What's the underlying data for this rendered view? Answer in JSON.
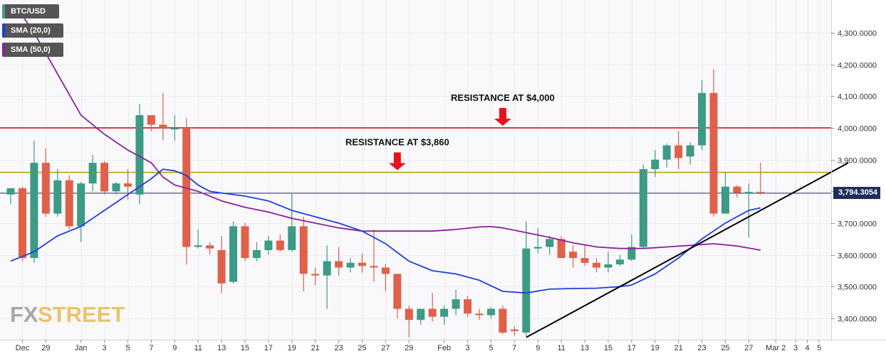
{
  "legend": [
    {
      "label": "BTC/USD",
      "color": "#4a9a8a"
    },
    {
      "label": "SMA (20,0)",
      "color": "#1f3fe0"
    },
    {
      "label": "SMA (50,0)",
      "color": "#8e1fa0"
    }
  ],
  "watermark": {
    "fx": "FX",
    "street": "STREET"
  },
  "last_price_label": "3,794.3054",
  "annotations": [
    {
      "text": "RESISTANCE AT $4,000",
      "level": 4000,
      "at_index": 42
    },
    {
      "text": "RESISTANCE AT $3,860",
      "level": 3860,
      "at_index": 33
    }
  ],
  "colors": {
    "up": "#3d9a85",
    "down": "#e0604a",
    "sma20": "#1f3fe0",
    "sma50": "#8e1fa0",
    "res4000": "#e01010",
    "res3860": "#b9a10a",
    "trend": "#000000",
    "price_line": "#1f2d5a"
  },
  "chart_data": {
    "type": "candlestick",
    "ylim": [
      3330,
      4400
    ],
    "y_ticks": [
      3400,
      3500,
      3600,
      3700,
      3800,
      3900,
      4000,
      4100,
      4200,
      4300
    ],
    "y_tick_labels": [
      "3,400.0000",
      "3,500.0000",
      "3,600.0000",
      "3,700.0000",
      "3,800.0000",
      "3,900.0000",
      "4,000.0000",
      "4,100.0000",
      "4,200.0000",
      "4,300.0000"
    ],
    "x_labels": [
      {
        "i": 1,
        "label": "Dec"
      },
      {
        "i": 3,
        "label": "29"
      },
      {
        "i": 6,
        "label": "Jan"
      },
      {
        "i": 8,
        "label": "3"
      },
      {
        "i": 10,
        "label": "5"
      },
      {
        "i": 12,
        "label": "7"
      },
      {
        "i": 14,
        "label": "9"
      },
      {
        "i": 16,
        "label": "11"
      },
      {
        "i": 18,
        "label": "13"
      },
      {
        "i": 20,
        "label": "15"
      },
      {
        "i": 22,
        "label": "17"
      },
      {
        "i": 24,
        "label": "19"
      },
      {
        "i": 26,
        "label": "21"
      },
      {
        "i": 28,
        "label": "23"
      },
      {
        "i": 30,
        "label": "25"
      },
      {
        "i": 32,
        "label": "27"
      },
      {
        "i": 34,
        "label": "29"
      },
      {
        "i": 37,
        "label": "Feb"
      },
      {
        "i": 39,
        "label": "3"
      },
      {
        "i": 41,
        "label": "5"
      },
      {
        "i": 43,
        "label": "7"
      },
      {
        "i": 45,
        "label": "9"
      },
      {
        "i": 47,
        "label": "11"
      },
      {
        "i": 49,
        "label": "13"
      },
      {
        "i": 51,
        "label": "15"
      },
      {
        "i": 53,
        "label": "17"
      },
      {
        "i": 55,
        "label": "19"
      },
      {
        "i": 57,
        "label": "21"
      },
      {
        "i": 59,
        "label": "23"
      },
      {
        "i": 61,
        "label": "25"
      },
      {
        "i": 63,
        "label": "27"
      },
      {
        "i": 65.3,
        "label": "Mar 2"
      },
      {
        "i": 67,
        "label": "3"
      },
      {
        "i": 68,
        "label": "4"
      },
      {
        "i": 69,
        "label": "5"
      }
    ],
    "candles": [
      {
        "o": 3790,
        "h": 3810,
        "l": 3760,
        "c": 3810
      },
      {
        "o": 3810,
        "h": 3815,
        "l": 3580,
        "c": 3590
      },
      {
        "o": 3590,
        "h": 3960,
        "l": 3575,
        "c": 3890
      },
      {
        "o": 3890,
        "h": 3935,
        "l": 3720,
        "c": 3730
      },
      {
        "o": 3730,
        "h": 3870,
        "l": 3720,
        "c": 3835
      },
      {
        "o": 3835,
        "h": 3850,
        "l": 3680,
        "c": 3690
      },
      {
        "o": 3690,
        "h": 3830,
        "l": 3640,
        "c": 3825
      },
      {
        "o": 3825,
        "h": 3915,
        "l": 3800,
        "c": 3890
      },
      {
        "o": 3890,
        "h": 3895,
        "l": 3790,
        "c": 3800
      },
      {
        "o": 3800,
        "h": 3830,
        "l": 3790,
        "c": 3825
      },
      {
        "o": 3825,
        "h": 3870,
        "l": 3775,
        "c": 3815
      },
      {
        "o": 3790,
        "h": 4075,
        "l": 3760,
        "c": 4040
      },
      {
        "o": 4040,
        "h": 4040,
        "l": 3990,
        "c": 4010
      },
      {
        "o": 4010,
        "h": 4110,
        "l": 3960,
        "c": 4000
      },
      {
        "o": 3995,
        "h": 4040,
        "l": 3960,
        "c": 4000
      },
      {
        "o": 4000,
        "h": 4030,
        "l": 3570,
        "c": 3625
      },
      {
        "o": 3625,
        "h": 3680,
        "l": 3620,
        "c": 3630
      },
      {
        "o": 3630,
        "h": 3640,
        "l": 3600,
        "c": 3620
      },
      {
        "o": 3615,
        "h": 3660,
        "l": 3480,
        "c": 3510
      },
      {
        "o": 3515,
        "h": 3705,
        "l": 3510,
        "c": 3690
      },
      {
        "o": 3690,
        "h": 3700,
        "l": 3580,
        "c": 3590
      },
      {
        "o": 3590,
        "h": 3640,
        "l": 3580,
        "c": 3615
      },
      {
        "o": 3615,
        "h": 3660,
        "l": 3600,
        "c": 3645
      },
      {
        "o": 3645,
        "h": 3665,
        "l": 3610,
        "c": 3615
      },
      {
        "o": 3615,
        "h": 3795,
        "l": 3610,
        "c": 3690
      },
      {
        "o": 3690,
        "h": 3720,
        "l": 3485,
        "c": 3540
      },
      {
        "o": 3540,
        "h": 3560,
        "l": 3505,
        "c": 3535
      },
      {
        "o": 3535,
        "h": 3630,
        "l": 3430,
        "c": 3580
      },
      {
        "o": 3580,
        "h": 3625,
        "l": 3535,
        "c": 3560
      },
      {
        "o": 3560,
        "h": 3590,
        "l": 3545,
        "c": 3575
      },
      {
        "o": 3575,
        "h": 3605,
        "l": 3545,
        "c": 3565
      },
      {
        "o": 3565,
        "h": 3680,
        "l": 3515,
        "c": 3560
      },
      {
        "o": 3560,
        "h": 3570,
        "l": 3485,
        "c": 3540
      },
      {
        "o": 3540,
        "h": 3540,
        "l": 3400,
        "c": 3430
      },
      {
        "o": 3430,
        "h": 3440,
        "l": 3340,
        "c": 3395
      },
      {
        "o": 3395,
        "h": 3430,
        "l": 3380,
        "c": 3430
      },
      {
        "o": 3430,
        "h": 3480,
        "l": 3390,
        "c": 3405
      },
      {
        "o": 3405,
        "h": 3440,
        "l": 3380,
        "c": 3430
      },
      {
        "o": 3430,
        "h": 3490,
        "l": 3410,
        "c": 3460
      },
      {
        "o": 3460,
        "h": 3470,
        "l": 3405,
        "c": 3415
      },
      {
        "o": 3415,
        "h": 3430,
        "l": 3395,
        "c": 3410
      },
      {
        "o": 3410,
        "h": 3435,
        "l": 3400,
        "c": 3430
      },
      {
        "o": 3430,
        "h": 3440,
        "l": 3350,
        "c": 3355
      },
      {
        "o": 3365,
        "h": 3375,
        "l": 3345,
        "c": 3360
      },
      {
        "o": 3355,
        "h": 3705,
        "l": 3345,
        "c": 3620
      },
      {
        "o": 3620,
        "h": 3685,
        "l": 3605,
        "c": 3625
      },
      {
        "o": 3625,
        "h": 3660,
        "l": 3600,
        "c": 3650
      },
      {
        "o": 3650,
        "h": 3660,
        "l": 3590,
        "c": 3590
      },
      {
        "o": 3610,
        "h": 3630,
        "l": 3560,
        "c": 3590
      },
      {
        "o": 3590,
        "h": 3630,
        "l": 3565,
        "c": 3575
      },
      {
        "o": 3575,
        "h": 3590,
        "l": 3545,
        "c": 3560
      },
      {
        "o": 3560,
        "h": 3610,
        "l": 3545,
        "c": 3570
      },
      {
        "o": 3570,
        "h": 3600,
        "l": 3565,
        "c": 3585
      },
      {
        "o": 3585,
        "h": 3665,
        "l": 3580,
        "c": 3625
      },
      {
        "o": 3625,
        "h": 3885,
        "l": 3620,
        "c": 3870
      },
      {
        "o": 3870,
        "h": 3930,
        "l": 3845,
        "c": 3900
      },
      {
        "o": 3900,
        "h": 3950,
        "l": 3875,
        "c": 3945
      },
      {
        "o": 3945,
        "h": 3990,
        "l": 3870,
        "c": 3905
      },
      {
        "o": 3910,
        "h": 3955,
        "l": 3885,
        "c": 3945
      },
      {
        "o": 3945,
        "h": 4150,
        "l": 3930,
        "c": 4110
      },
      {
        "o": 4110,
        "h": 4185,
        "l": 3720,
        "c": 3730
      },
      {
        "o": 3730,
        "h": 3860,
        "l": 3730,
        "c": 3815
      },
      {
        "o": 3815,
        "h": 3820,
        "l": 3780,
        "c": 3795
      },
      {
        "o": 3795,
        "h": 3825,
        "l": 3655,
        "c": 3798
      },
      {
        "o": 3798,
        "h": 3890,
        "l": 3790,
        "c": 3795
      }
    ],
    "sma20": [
      {
        "i": 0,
        "v": 3580
      },
      {
        "i": 2,
        "v": 3610
      },
      {
        "i": 4,
        "v": 3660
      },
      {
        "i": 6,
        "v": 3690
      },
      {
        "i": 8,
        "v": 3740
      },
      {
        "i": 10,
        "v": 3790
      },
      {
        "i": 12,
        "v": 3840
      },
      {
        "i": 13,
        "v": 3870
      },
      {
        "i": 14,
        "v": 3865
      },
      {
        "i": 15,
        "v": 3850
      },
      {
        "i": 16,
        "v": 3820
      },
      {
        "i": 17,
        "v": 3800
      },
      {
        "i": 18,
        "v": 3795
      },
      {
        "i": 20,
        "v": 3785
      },
      {
        "i": 22,
        "v": 3770
      },
      {
        "i": 24,
        "v": 3740
      },
      {
        "i": 26,
        "v": 3720
      },
      {
        "i": 28,
        "v": 3700
      },
      {
        "i": 30,
        "v": 3675
      },
      {
        "i": 32,
        "v": 3635
      },
      {
        "i": 34,
        "v": 3580
      },
      {
        "i": 36,
        "v": 3550
      },
      {
        "i": 38,
        "v": 3540
      },
      {
        "i": 40,
        "v": 3520
      },
      {
        "i": 42,
        "v": 3485
      },
      {
        "i": 44,
        "v": 3480
      },
      {
        "i": 46,
        "v": 3492
      },
      {
        "i": 48,
        "v": 3494
      },
      {
        "i": 50,
        "v": 3495
      },
      {
        "i": 52,
        "v": 3500
      },
      {
        "i": 53,
        "v": 3505
      },
      {
        "i": 55,
        "v": 3540
      },
      {
        "i": 57,
        "v": 3590
      },
      {
        "i": 59,
        "v": 3650
      },
      {
        "i": 61,
        "v": 3700
      },
      {
        "i": 63,
        "v": 3740
      },
      {
        "i": 64,
        "v": 3748
      }
    ],
    "sma50": [
      {
        "i": 0.5,
        "v": 4380
      },
      {
        "i": 2,
        "v": 4300
      },
      {
        "i": 4,
        "v": 4170
      },
      {
        "i": 6,
        "v": 4040
      },
      {
        "i": 8,
        "v": 3980
      },
      {
        "i": 10,
        "v": 3930
      },
      {
        "i": 12,
        "v": 3890
      },
      {
        "i": 13,
        "v": 3845
      },
      {
        "i": 14,
        "v": 3820
      },
      {
        "i": 16,
        "v": 3800
      },
      {
        "i": 18,
        "v": 3770
      },
      {
        "i": 20,
        "v": 3750
      },
      {
        "i": 22,
        "v": 3735
      },
      {
        "i": 24,
        "v": 3715
      },
      {
        "i": 26,
        "v": 3700
      },
      {
        "i": 28,
        "v": 3685
      },
      {
        "i": 30,
        "v": 3675
      },
      {
        "i": 32,
        "v": 3675
      },
      {
        "i": 34,
        "v": 3675
      },
      {
        "i": 36,
        "v": 3675
      },
      {
        "i": 38,
        "v": 3680
      },
      {
        "i": 40,
        "v": 3688
      },
      {
        "i": 41,
        "v": 3689
      },
      {
        "i": 42,
        "v": 3685
      },
      {
        "i": 44,
        "v": 3670
      },
      {
        "i": 46,
        "v": 3655
      },
      {
        "i": 48,
        "v": 3638
      },
      {
        "i": 50,
        "v": 3625
      },
      {
        "i": 52,
        "v": 3620
      },
      {
        "i": 54,
        "v": 3620
      },
      {
        "i": 56,
        "v": 3625
      },
      {
        "i": 58,
        "v": 3630
      },
      {
        "i": 60,
        "v": 3635
      },
      {
        "i": 62,
        "v": 3628
      },
      {
        "i": 64,
        "v": 3615
      }
    ],
    "resistance_lines": [
      4000,
      3860
    ],
    "last_price": 3794.3054,
    "trendline": {
      "i1": 44,
      "v1": 3340,
      "i2": 71.5,
      "v2": 3890
    }
  }
}
